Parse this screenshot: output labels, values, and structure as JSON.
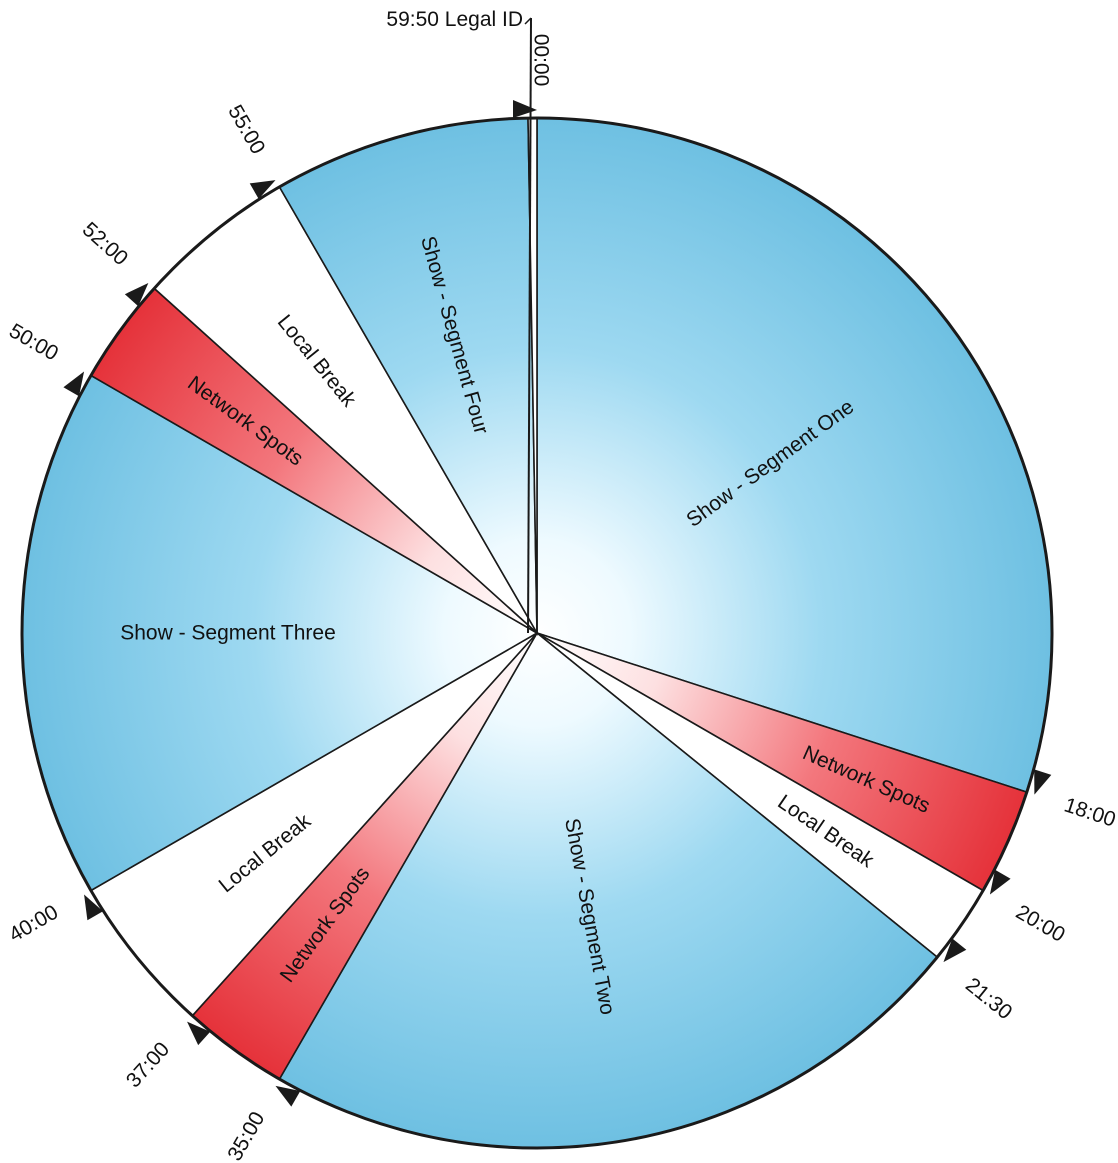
{
  "chart_data": {
    "type": "pie",
    "total_minutes": 60,
    "segments": [
      {
        "label": "Show - Segment One",
        "start": "00:00",
        "end": "18:00",
        "kind": "show",
        "color": "#7cc8e6"
      },
      {
        "label": "Network Spots",
        "start": "18:00",
        "end": "20:00",
        "kind": "network",
        "color": "#e8383f"
      },
      {
        "label": "Local Break",
        "start": "20:00",
        "end": "21:30",
        "kind": "local",
        "color": "#ffffff"
      },
      {
        "label": "Show - Segment Two",
        "start": "21:30",
        "end": "35:00",
        "kind": "show",
        "color": "#7cc8e6"
      },
      {
        "label": "Network Spots",
        "start": "35:00",
        "end": "37:00",
        "kind": "network",
        "color": "#e8383f"
      },
      {
        "label": "Local Break",
        "start": "37:00",
        "end": "40:00",
        "kind": "local",
        "color": "#ffffff"
      },
      {
        "label": "Show - Segment Three",
        "start": "40:00",
        "end": "50:00",
        "kind": "show",
        "color": "#7cc8e6"
      },
      {
        "label": "Network Spots",
        "start": "50:00",
        "end": "52:00",
        "kind": "network",
        "color": "#e8383f"
      },
      {
        "label": "Local Break",
        "start": "52:00",
        "end": "55:00",
        "kind": "local",
        "color": "#ffffff"
      },
      {
        "label": "Show - Segment Four",
        "start": "55:00",
        "end": "59:50",
        "kind": "show",
        "color": "#7cc8e6"
      },
      {
        "label": "Legal ID",
        "start": "59:50",
        "end": "60:00",
        "kind": "legal",
        "color": "#ffffff"
      }
    ],
    "markers": [
      "00:00",
      "18:00",
      "20:00",
      "21:30",
      "35:00",
      "37:00",
      "40:00",
      "50:00",
      "52:00",
      "55:00"
    ],
    "legal_id_label": "59:50 Legal ID"
  }
}
